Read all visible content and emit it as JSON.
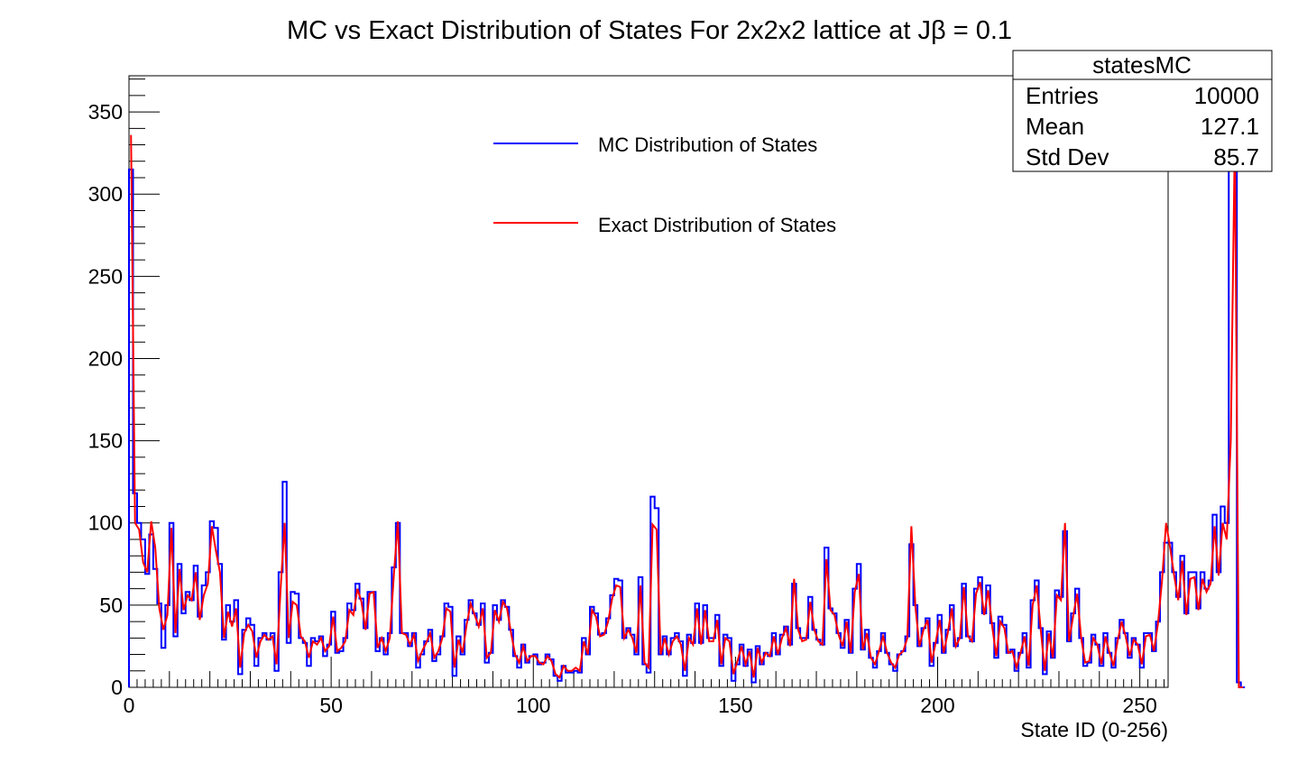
{
  "chart_data": {
    "type": "line",
    "title": "MC vs Exact Distribution of States For 2x2x2 lattice at   Jβ = 0.1",
    "xlabel": "State ID (0-256)",
    "ylabel": "",
    "xlim": [
      0,
      257
    ],
    "ylim": [
      0,
      372
    ],
    "x_ticks": [
      0,
      50,
      100,
      150,
      200,
      250
    ],
    "y_ticks": [
      0,
      50,
      100,
      150,
      200,
      250,
      300,
      350
    ],
    "grid": false,
    "legend_placement": "top-center",
    "series": [
      {
        "name": "MC Distribution of States",
        "color": "#0000ff",
        "style": "histogram",
        "values": [
          315,
          118,
          100,
          90,
          69,
          93,
          72,
          51,
          24,
          50,
          100,
          31,
          75,
          45,
          58,
          53,
          74,
          43,
          62,
          70,
          101,
          97,
          75,
          29,
          50,
          40,
          53,
          8,
          35,
          42,
          38,
          13,
          30,
          33,
          29,
          33,
          10,
          70,
          125,
          27,
          58,
          57,
          30,
          27,
          13,
          30,
          28,
          31,
          19,
          26,
          46,
          21,
          22,
          30,
          51,
          47,
          63,
          54,
          36,
          58,
          58,
          22,
          30,
          20,
          33,
          73,
          100,
          33,
          33,
          25,
          33,
          12,
          20,
          28,
          35,
          16,
          20,
          31,
          51,
          49,
          7,
          31,
          20,
          41,
          53,
          45,
          38,
          51,
          15,
          21,
          50,
          41,
          53,
          49,
          35,
          19,
          12,
          26,
          15,
          19,
          20,
          14,
          15,
          20,
          17,
          7,
          4,
          13,
          9,
          9,
          10,
          9,
          30,
          20,
          49,
          45,
          32,
          33,
          42,
          56,
          66,
          65,
          30,
          36,
          32,
          20,
          67,
          14,
          9,
          116,
          109,
          20,
          31,
          20,
          30,
          33,
          28,
          7,
          32,
          27,
          51,
          27,
          50,
          30,
          30,
          44,
          13,
          32,
          30,
          4,
          14,
          26,
          13,
          23,
          3,
          25,
          14,
          21,
          19,
          33,
          20,
          32,
          37,
          26,
          63,
          36,
          30,
          30,
          55,
          35,
          29,
          26,
          85,
          48,
          45,
          33,
          24,
          41,
          21,
          60,
          75,
          23,
          35,
          18,
          12,
          22,
          33,
          21,
          14,
          10,
          20,
          22,
          31,
          87,
          50,
          25,
          36,
          42,
          13,
          27,
          44,
          21,
          35,
          50,
          25,
          30,
          63,
          31,
          28,
          60,
          67,
          45,
          62,
          39,
          18,
          43,
          38,
          21,
          23,
          10,
          21,
          33,
          12,
          53,
          65,
          36,
          8,
          34,
          18,
          59,
          55,
          95,
          28,
          45,
          60,
          30,
          13,
          15,
          32,
          26,
          13,
          33,
          21,
          12,
          30,
          41,
          33,
          18,
          30,
          26,
          12,
          33,
          33,
          22,
          40,
          70,
          88,
          88,
          70,
          55,
          80,
          45,
          70,
          70,
          48,
          70,
          60,
          65,
          105,
          70,
          110,
          100,
          320,
          360,
          3,
          0
        ]
      },
      {
        "name": "Exact Distribution of States",
        "color": "#ff0000",
        "style": "line",
        "values": [
          336,
          100,
          96,
          76,
          70,
          101,
          85,
          48,
          35,
          44,
          97,
          33,
          72,
          47,
          56,
          53,
          70,
          41,
          56,
          63,
          98,
          83,
          70,
          30,
          46,
          37,
          48,
          12,
          33,
          38,
          34,
          18,
          28,
          32,
          29,
          31,
          14,
          60,
          100,
          30,
          52,
          50,
          31,
          28,
          18,
          28,
          26,
          30,
          22,
          25,
          43,
          22,
          24,
          28,
          47,
          44,
          60,
          52,
          35,
          57,
          58,
          24,
          30,
          22,
          30,
          68,
          101,
          33,
          32,
          26,
          32,
          16,
          22,
          27,
          33,
          18,
          22,
          30,
          48,
          46,
          12,
          29,
          21,
          38,
          51,
          44,
          37,
          48,
          18,
          21,
          47,
          40,
          52,
          48,
          33,
          20,
          15,
          25,
          16,
          19,
          19,
          15,
          14,
          19,
          16,
          8,
          6,
          13,
          10,
          10,
          12,
          10,
          28,
          20,
          47,
          43,
          31,
          32,
          40,
          54,
          62,
          61,
          30,
          35,
          30,
          21,
          62,
          15,
          12,
          99,
          96,
          20,
          30,
          20,
          28,
          31,
          26,
          10,
          30,
          26,
          48,
          26,
          47,
          28,
          28,
          41,
          14,
          30,
          28,
          8,
          16,
          25,
          14,
          22,
          6,
          24,
          15,
          21,
          19,
          31,
          20,
          30,
          36,
          25,
          66,
          35,
          28,
          29,
          52,
          35,
          28,
          26,
          78,
          47,
          44,
          32,
          25,
          40,
          21,
          58,
          69,
          23,
          33,
          18,
          14,
          22,
          31,
          21,
          15,
          12,
          20,
          22,
          30,
          98,
          49,
          25,
          35,
          41,
          15,
          27,
          41,
          21,
          33,
          48,
          25,
          30,
          61,
          31,
          28,
          57,
          64,
          44,
          59,
          37,
          19,
          40,
          36,
          21,
          22,
          12,
          21,
          31,
          13,
          50,
          62,
          35,
          10,
          33,
          18,
          56,
          53,
          100,
          28,
          43,
          57,
          30,
          15,
          16,
          30,
          26,
          14,
          31,
          21,
          13,
          28,
          40,
          31,
          19,
          29,
          26,
          14,
          31,
          32,
          22,
          39,
          65,
          100,
          85,
          68,
          53,
          77,
          44,
          66,
          67,
          47,
          66,
          58,
          63,
          98,
          68,
          100,
          90,
          150,
          335,
          0,
          0
        ]
      }
    ],
    "stats_box": {
      "title": "statesMC",
      "rows": [
        {
          "label": "Entries",
          "value": "10000"
        },
        {
          "label": "Mean",
          "value": "127.1"
        },
        {
          "label": "Std Dev",
          "value": "85.7"
        }
      ]
    }
  }
}
